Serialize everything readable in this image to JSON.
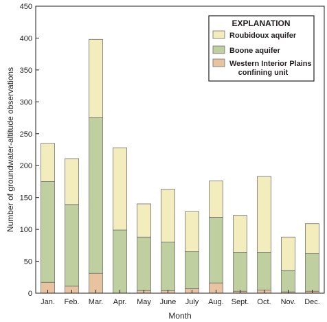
{
  "chart_data": {
    "type": "bar",
    "stacked": true,
    "categories": [
      "Jan.",
      "Feb.",
      "Mar.",
      "Apr.",
      "May",
      "June",
      "July",
      "Aug.",
      "Sept.",
      "Oct.",
      "Nov.",
      "Dec."
    ],
    "series": [
      {
        "name": "Western Interior Plains confining unit",
        "name_lines": [
          "Western Interior Plains",
          "confining unit"
        ],
        "color": "#e8c3a0",
        "values": [
          17,
          11,
          31,
          0,
          4,
          4,
          7,
          16,
          3,
          5,
          2,
          3
        ]
      },
      {
        "name": "Boone aquifer",
        "color": "#bfcf9f",
        "values": [
          158,
          128,
          244,
          99,
          84,
          76,
          58,
          103,
          61,
          59,
          34,
          59
        ]
      },
      {
        "name": "Roubidoux aquifer",
        "color": "#f3ecbc",
        "values": [
          60,
          72,
          123,
          129,
          52,
          83,
          63,
          57,
          58,
          119,
          52,
          47
        ]
      }
    ],
    "title": "",
    "xlabel": "Month",
    "ylabel": "Number of groundwater-altitude observations",
    "ylim": [
      0,
      450
    ],
    "yticks": [
      0,
      50,
      100,
      150,
      200,
      250,
      300,
      350,
      400,
      450
    ],
    "legend": {
      "title": "EXPLANATION",
      "placement": "top-right"
    },
    "grid": false
  },
  "colors": {
    "bar_edge": "#6d6e71",
    "axis": "#231f20"
  }
}
